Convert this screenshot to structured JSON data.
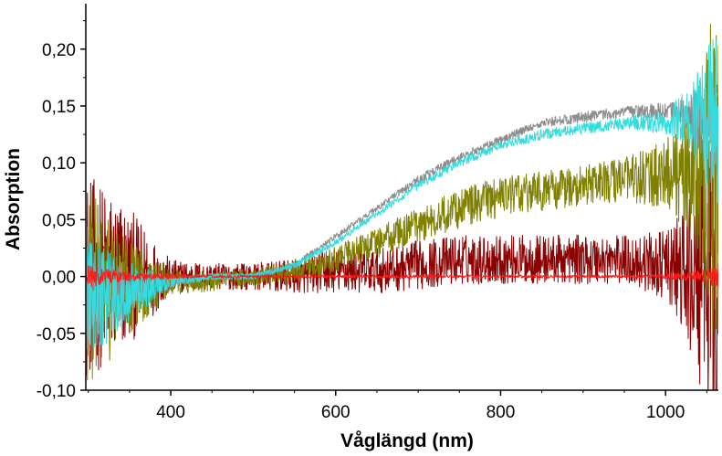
{
  "chart_data": {
    "type": "line",
    "title": "",
    "xlabel": "Våglängd (nm)",
    "ylabel": "Absorption",
    "xlim": [
      297,
      1064
    ],
    "ylim": [
      -0.1,
      0.24
    ],
    "x_ticks": [
      400,
      600,
      800,
      1000
    ],
    "x_tick_labels": [
      "400",
      "600",
      "800",
      "1000"
    ],
    "y_ticks": [
      -0.1,
      -0.05,
      0.0,
      0.05,
      0.1,
      0.15,
      0.2
    ],
    "y_tick_labels": [
      "-0,10",
      "-0,05",
      "0,00",
      "0,05",
      "0,10",
      "0,15",
      "0,20"
    ],
    "grid": false,
    "legend": "none",
    "series": [
      {
        "color": "#8b0000",
        "x": [
          300,
          340,
          400,
          450,
          500,
          550,
          600,
          650,
          700,
          750,
          800,
          850,
          900,
          950,
          1000,
          1030,
          1050,
          1064
        ],
        "values": [
          0.0,
          0.0,
          0.0,
          0.0,
          0.0,
          0.0,
          0.005,
          0.005,
          0.01,
          0.015,
          0.015,
          0.015,
          0.015,
          0.015,
          0.01,
          0.0,
          0.0,
          0.0
        ],
        "noise": [
          0.09,
          0.07,
          0.015,
          0.012,
          0.012,
          0.015,
          0.02,
          0.02,
          0.022,
          0.022,
          0.022,
          0.022,
          0.022,
          0.022,
          0.03,
          0.07,
          0.12,
          0.16
        ]
      },
      {
        "color": "#808000",
        "x": [
          300,
          340,
          400,
          450,
          500,
          550,
          600,
          650,
          700,
          750,
          800,
          850,
          900,
          950,
          1000,
          1030,
          1050,
          1064
        ],
        "values": [
          -0.01,
          -0.01,
          -0.005,
          -0.005,
          0.0,
          0.005,
          0.015,
          0.03,
          0.045,
          0.06,
          0.07,
          0.075,
          0.08,
          0.085,
          0.09,
          0.09,
          0.09,
          0.09
        ],
        "noise": [
          0.09,
          0.05,
          0.012,
          0.008,
          0.008,
          0.01,
          0.012,
          0.014,
          0.016,
          0.018,
          0.018,
          0.018,
          0.018,
          0.02,
          0.03,
          0.06,
          0.12,
          0.16
        ]
      },
      {
        "color": "#8c8c8c",
        "x": [
          300,
          340,
          400,
          450,
          500,
          550,
          600,
          650,
          700,
          750,
          800,
          850,
          900,
          950,
          1000,
          1030,
          1050,
          1064
        ],
        "values": [
          -0.02,
          -0.015,
          -0.005,
          0.0,
          0.0,
          0.01,
          0.035,
          0.06,
          0.085,
          0.105,
          0.12,
          0.135,
          0.14,
          0.145,
          0.145,
          0.14,
          0.14,
          0.14
        ],
        "noise": [
          0.05,
          0.025,
          0.005,
          0.003,
          0.003,
          0.003,
          0.003,
          0.003,
          0.004,
          0.004,
          0.004,
          0.004,
          0.005,
          0.005,
          0.008,
          0.02,
          0.04,
          0.06
        ]
      },
      {
        "color": "#33dddd",
        "x": [
          300,
          340,
          400,
          450,
          500,
          550,
          600,
          650,
          700,
          750,
          800,
          850,
          900,
          950,
          1000,
          1030,
          1050,
          1064
        ],
        "values": [
          -0.02,
          -0.015,
          -0.005,
          0.0,
          0.0,
          0.01,
          0.03,
          0.055,
          0.08,
          0.1,
          0.115,
          0.125,
          0.13,
          0.135,
          0.135,
          0.14,
          0.14,
          0.14
        ],
        "noise": [
          0.06,
          0.03,
          0.005,
          0.003,
          0.003,
          0.003,
          0.003,
          0.003,
          0.004,
          0.004,
          0.004,
          0.005,
          0.005,
          0.006,
          0.01,
          0.03,
          0.06,
          0.09
        ]
      },
      {
        "color": "#ff1a1a",
        "x": [
          300,
          340,
          400,
          450,
          500,
          550,
          600,
          650,
          700,
          750,
          800,
          850,
          900,
          950,
          1000,
          1030,
          1050,
          1064
        ],
        "values": [
          0.0,
          0.0,
          0.0,
          0.0,
          0.0,
          0.0,
          0.0,
          0.0,
          0.0,
          0.0,
          0.0,
          0.0,
          0.0,
          0.0,
          0.0,
          0.0,
          0.0,
          0.0
        ],
        "noise": [
          0.01,
          0.005,
          0.002,
          0.0015,
          0.0015,
          0.0015,
          0.0015,
          0.0015,
          0.0015,
          0.0015,
          0.0015,
          0.0015,
          0.0015,
          0.0015,
          0.002,
          0.005,
          0.008,
          0.01
        ]
      }
    ]
  }
}
